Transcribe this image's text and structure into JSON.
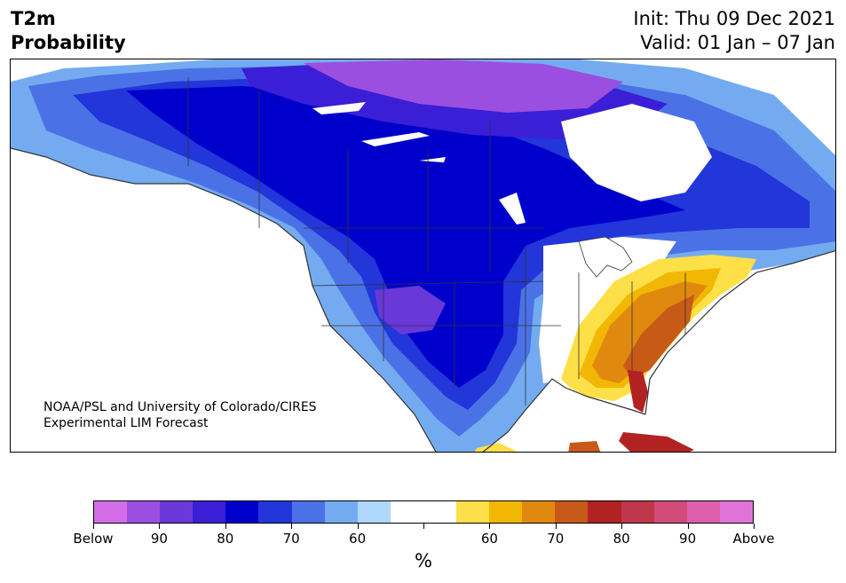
{
  "title": {
    "line1": "T2m",
    "line2": "Probability"
  },
  "init": "Init: Thu 09 Dec 2021",
  "valid": "Valid: 01 Jan – 07 Jan",
  "credit": {
    "line1": "NOAA/PSL and University of Colorado/CIRES",
    "line2": "Experimental LIM Forecast"
  },
  "colorbar": {
    "unit": "%",
    "colors": [
      "#d36ee8",
      "#9b4fe0",
      "#6a37d9",
      "#3a1fd6",
      "#0000cc",
      "#2236d9",
      "#4a72e6",
      "#74abf0",
      "#aed8fa",
      "#ffffff",
      "#ffffff",
      "#fde047",
      "#f2b705",
      "#df8a0f",
      "#c85a17",
      "#b22222",
      "#c0364c",
      "#d24b7a",
      "#dd5fae",
      "#e274d8"
    ],
    "tick_labels": [
      "Below",
      "90",
      "80",
      "70",
      "60",
      "",
      "60",
      "70",
      "80",
      "90",
      "Above"
    ]
  },
  "legend_colors": {
    "below_strong": "#3a1fd6",
    "below_mid": "#0000cc",
    "above_mid": "#df8a0f",
    "above_strong": "#b22222"
  }
}
